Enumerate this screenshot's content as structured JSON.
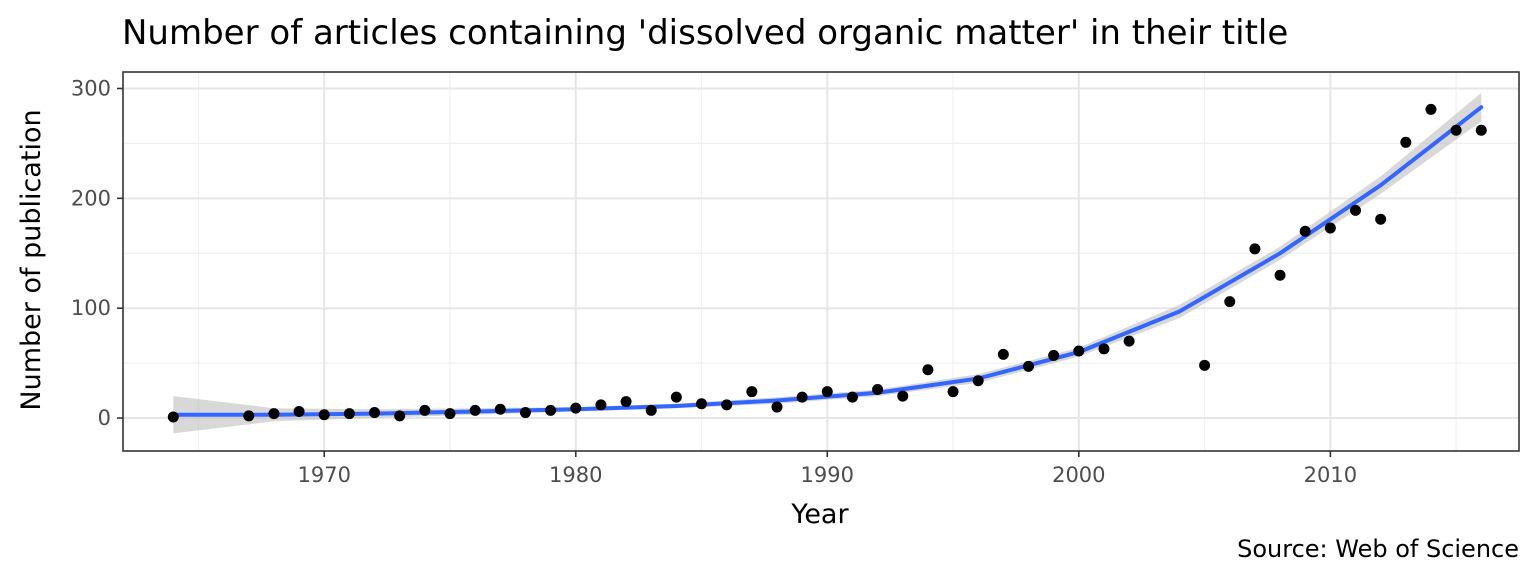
{
  "chart_data": {
    "type": "scatter",
    "title": "Number of articles containing 'dissolved organic matter' in their title",
    "xlabel": "Year",
    "ylabel": "Number of publication",
    "caption": "Source: Web of Science",
    "xlim": [
      1962,
      2017.5
    ],
    "ylim": [
      -30,
      315
    ],
    "x_ticks": [
      1970,
      1980,
      1990,
      2000,
      2010
    ],
    "y_ticks": [
      0,
      100,
      200,
      300
    ],
    "grid": true,
    "legend": "none",
    "series": [
      {
        "kind": "points",
        "color": "#000000",
        "x": [
          1964,
          1967,
          1968,
          1969,
          1970,
          1971,
          1972,
          1973,
          1974,
          1975,
          1976,
          1977,
          1978,
          1979,
          1980,
          1981,
          1982,
          1983,
          1984,
          1985,
          1986,
          1987,
          1988,
          1989,
          1990,
          1991,
          1992,
          1993,
          1994,
          1995,
          1996,
          1997,
          1998,
          1999,
          2000,
          2001,
          2002,
          2005,
          2006,
          2007,
          2008,
          2009,
          2010,
          2011,
          2012,
          2013,
          2014,
          2015,
          2016
        ],
        "y": [
          1,
          2,
          4,
          6,
          3,
          4,
          5,
          2,
          7,
          4,
          7,
          8,
          5,
          7,
          9,
          12,
          15,
          7,
          19,
          13,
          12,
          24,
          10,
          19,
          24,
          19,
          26,
          20,
          44,
          24,
          34,
          58,
          47,
          57,
          61,
          63,
          70,
          48,
          106,
          154,
          130,
          170,
          173,
          189,
          181,
          251,
          281,
          262,
          262
        ]
      },
      {
        "kind": "smooth",
        "color": "#3366ff",
        "ribbon_color": "#bebebe",
        "x": [
          1964,
          1968,
          1972,
          1976,
          1980,
          1984,
          1988,
          1992,
          1996,
          2000,
          2004,
          2008,
          2012,
          2016
        ],
        "y": [
          3,
          3,
          4,
          6,
          8,
          11,
          16,
          23,
          36,
          60,
          97,
          150,
          212,
          283
        ],
        "lower": [
          -14,
          -3,
          0,
          3,
          6,
          9,
          13,
          20,
          32,
          56,
          91,
          144,
          204,
          270
        ],
        "upper": [
          20,
          9,
          8,
          9,
          10,
          13,
          19,
          26,
          40,
          64,
          103,
          156,
          220,
          296
        ]
      }
    ]
  }
}
